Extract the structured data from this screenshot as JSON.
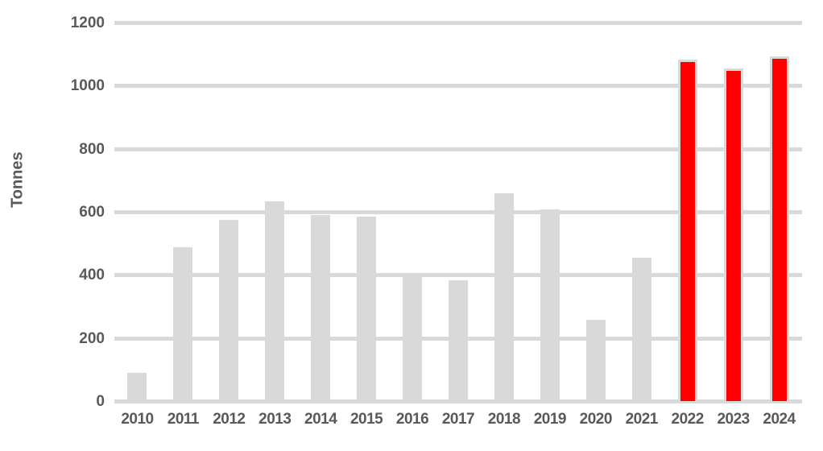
{
  "chart_data": {
    "type": "bar",
    "title": "",
    "xlabel": "",
    "ylabel": "Tonnes",
    "categories": [
      "2010",
      "2011",
      "2012",
      "2013",
      "2014",
      "2015",
      "2016",
      "2017",
      "2018",
      "2019",
      "2020",
      "2021",
      "2022",
      "2023",
      "2024"
    ],
    "values": [
      90,
      490,
      575,
      635,
      590,
      585,
      400,
      385,
      660,
      610,
      260,
      455,
      1085,
      1055,
      1095
    ],
    "highlighted_categories": [
      "2022",
      "2023",
      "2024"
    ],
    "ylim": [
      0,
      1200
    ],
    "yticks": [
      0,
      200,
      400,
      600,
      800,
      1000,
      1200
    ],
    "ytick_step": 200,
    "grid": "horizontal-only",
    "legend": "none"
  },
  "colors": {
    "background": "#ffffff",
    "bar_default": "#d9d9d9",
    "bar_highlight": "#ff0000",
    "bar_highlight_border": "#d9d9d9",
    "gridline": "#d9d9d9",
    "axis_text": "#595959"
  }
}
